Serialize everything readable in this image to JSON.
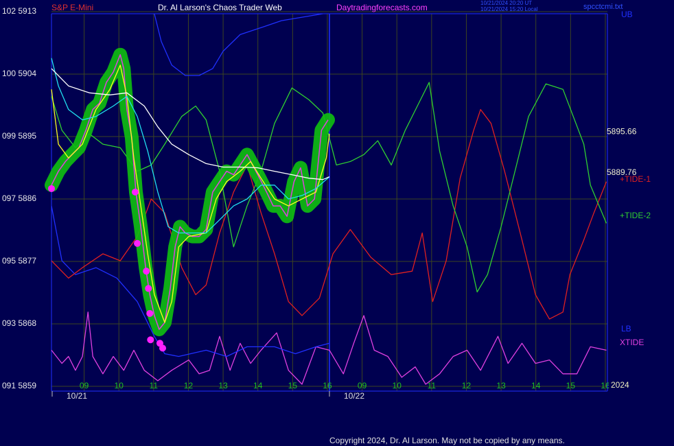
{
  "chart_data": {
    "type": "line",
    "header": {
      "symbol": "S&P E-Mini",
      "title": "Dr. Al Larson's Chaos Trader Web",
      "site": "Daytradingforecasts.com",
      "time_ut": "10/21/2024 20:20 UT",
      "time_local": "10/21/2024 15:20 Local",
      "file": "spcctcmi.txt"
    },
    "copyright": "Copyright 2024, Dr. Al Larson. May not be copied by any means.",
    "year": "2024",
    "dates": [
      "10/21",
      "10/22"
    ],
    "xlim": [
      0.06,
      16.06
    ],
    "ylim": [
      5859,
      5913
    ],
    "grid": true,
    "xticks": [
      {
        "value": 1,
        "label": "09"
      },
      {
        "value": 2,
        "label": "10"
      },
      {
        "value": 3,
        "label": "11"
      },
      {
        "value": 4,
        "label": "12"
      },
      {
        "value": 5,
        "label": "13"
      },
      {
        "value": 6,
        "label": "14"
      },
      {
        "value": 7,
        "label": "15"
      },
      {
        "value": 8,
        "label": "16"
      },
      {
        "value": 9,
        "label": "09"
      },
      10,
      11,
      12,
      13,
      14,
      15,
      16
    ],
    "yticks": [
      {
        "value": 5913,
        "label": "102 5913"
      },
      {
        "value": 5904,
        "label": "100 5904"
      },
      {
        "value": 5895,
        "label": "099 5895"
      },
      {
        "value": 5886,
        "label": "097 5886"
      },
      {
        "value": 5877,
        "label": "095 5877"
      },
      {
        "value": 5868,
        "label": "093 5868"
      },
      {
        "value": 5859,
        "label": "091 5859"
      }
    ],
    "price_labels": [
      5895.66,
      5889.76
    ],
    "series": [
      {
        "name": "XTIDE",
        "color": "#e040e0",
        "x": [
          0.06,
          0.36,
          0.55,
          0.75,
          0.95,
          1.11,
          1.25,
          1.54,
          1.84,
          2.14,
          2.43,
          2.73,
          3.12,
          3.52,
          4.01,
          4.31,
          4.61,
          4.9,
          5.2,
          5.49,
          5.79,
          6.09,
          6.54,
          6.88,
          7.27,
          7.67,
          8.06,
          8.46,
          8.76,
          9.05,
          9.35,
          9.74,
          10.14,
          10.53,
          10.83,
          11.23,
          11.62,
          12.02,
          12.41,
          12.91,
          13.2,
          13.6,
          13.99,
          14.39,
          14.78,
          15.18,
          15.57,
          16.03
        ],
        "values": [
          5864.2,
          5862.3,
          5863.3,
          5861.3,
          5863.3,
          5869.7,
          5863.3,
          5860.8,
          5863.3,
          5861.3,
          5864.2,
          5861.3,
          5859.8,
          5861.3,
          5862.8,
          5860.8,
          5861.3,
          5866.2,
          5861.3,
          5865.2,
          5862.3,
          5864.2,
          5866.7,
          5861.3,
          5859.3,
          5864.7,
          5864.2,
          5860.8,
          5865.2,
          5869.2,
          5864.2,
          5863.3,
          5860.3,
          5861.8,
          5859.3,
          5860.8,
          5863.3,
          5864.2,
          5861.3,
          5866.2,
          5862.3,
          5865.2,
          5862.3,
          5862.8,
          5860.8,
          5860.8,
          5864.7,
          5864.2
        ]
      },
      {
        "name": "UB",
        "color": "#2030ff",
        "x": [
          3.02,
          3.22,
          3.52,
          3.91,
          4.31,
          4.7,
          5.0,
          5.49,
          6.09,
          6.68,
          7.27,
          7.87
        ],
        "values": [
          5912.7,
          5908.7,
          5905.3,
          5903.8,
          5903.8,
          5904.8,
          5907.3,
          5909.7,
          5910.7,
          5911.7,
          5912.2,
          5912.7
        ]
      },
      {
        "name": "LB",
        "color": "#2030ff",
        "x": [
          0.06,
          0.36,
          0.75,
          1.34,
          1.94,
          2.53,
          3.02,
          3.32,
          3.72,
          4.51,
          5.1,
          5.69,
          6.48,
          7.08,
          7.67,
          8.06
        ],
        "values": [
          5885.0,
          5877.1,
          5875.1,
          5876.1,
          5874.6,
          5871.2,
          5866.2,
          5863.7,
          5863.3,
          5864.2,
          5863.3,
          5864.7,
          5864.7,
          5863.7,
          5864.7,
          5865.2
        ]
      },
      {
        "name": "+TIDE-1",
        "color": "#e02020",
        "x": [
          0.06,
          0.55,
          0.95,
          1.54,
          2.04,
          2.53,
          2.93,
          3.32,
          3.81,
          4.21,
          4.51,
          4.9,
          5.3,
          5.69,
          6.09,
          6.48,
          6.88,
          7.27,
          7.77,
          8.16,
          8.66,
          9.25,
          9.84,
          10.44,
          10.73,
          11.03,
          11.42,
          11.82,
          12.21,
          12.41,
          12.71,
          13.1,
          13.6,
          13.99,
          14.39,
          14.78,
          14.98,
          15.38,
          15.67,
          16.03
        ],
        "values": [
          5877.1,
          5874.6,
          5876.1,
          5878.1,
          5877.1,
          5880.6,
          5886.0,
          5884.0,
          5876.1,
          5872.2,
          5873.6,
          5881.1,
          5887.0,
          5890.9,
          5884.0,
          5878.1,
          5871.2,
          5869.2,
          5871.7,
          5878.1,
          5881.6,
          5877.6,
          5875.1,
          5875.6,
          5881.1,
          5871.2,
          5877.1,
          5889.0,
          5895.9,
          5898.9,
          5896.9,
          5890.0,
          5880.1,
          5872.2,
          5868.7,
          5869.7,
          5875.1,
          5880.1,
          5884.0,
          5888.5
        ]
      },
      {
        "name": "+TIDE-2",
        "color": "#30d030",
        "x": [
          0.06,
          0.36,
          0.75,
          1.15,
          1.54,
          2.04,
          2.53,
          2.93,
          3.32,
          3.81,
          4.21,
          4.51,
          4.9,
          5.3,
          5.69,
          6.09,
          6.48,
          6.98,
          7.47,
          7.87,
          8.26,
          8.66,
          9.05,
          9.45,
          9.84,
          10.24,
          10.63,
          10.93,
          11.23,
          11.62,
          12.02,
          12.31,
          12.61,
          13.0,
          13.4,
          13.79,
          14.29,
          14.78,
          15.38,
          15.57,
          16.03
        ],
        "values": [
          5900.8,
          5895.9,
          5893.4,
          5895.4,
          5893.9,
          5893.4,
          5890.0,
          5890.9,
          5893.9,
          5897.9,
          5899.4,
          5897.4,
          5890.0,
          5879.1,
          5885.0,
          5890.0,
          5896.9,
          5902.0,
          5900.3,
          5898.4,
          5890.9,
          5891.4,
          5892.4,
          5894.4,
          5890.9,
          5895.9,
          5899.8,
          5902.8,
          5892.9,
          5885.0,
          5879.1,
          5872.6,
          5875.1,
          5882.0,
          5890.0,
          5897.9,
          5902.6,
          5901.8,
          5893.9,
          5888.0,
          5882.5
        ]
      },
      {
        "color": "#e040e0",
        "glow": "#10c010",
        "x": [
          0.06,
          0.26,
          0.46,
          0.65,
          0.85,
          1.05,
          1.25,
          1.44,
          1.64,
          1.84,
          2.04,
          2.14,
          2.23,
          2.37,
          2.49,
          2.63,
          2.77,
          2.89,
          3.02,
          3.16,
          3.32,
          3.48,
          3.62,
          3.76,
          3.91,
          4.11,
          4.31,
          4.51,
          4.7,
          4.9,
          5.1,
          5.3,
          5.49,
          5.69,
          5.85,
          6.05,
          6.25,
          6.44,
          6.64,
          6.84,
          7.04,
          7.23,
          7.43,
          7.63,
          7.83,
          8.02
        ],
        "values": [
          5888.0,
          5890.0,
          5891.4,
          5892.4,
          5893.4,
          5895.9,
          5898.9,
          5899.8,
          5902.8,
          5904.3,
          5906.8,
          5904.8,
          5898.9,
          5894.9,
          5887.0,
          5882.0,
          5876.1,
          5872.2,
          5869.2,
          5867.2,
          5868.2,
          5873.1,
          5879.1,
          5882.0,
          5881.1,
          5880.6,
          5880.6,
          5881.6,
          5887.0,
          5888.5,
          5890.0,
          5889.5,
          5890.9,
          5892.4,
          5890.9,
          5889.0,
          5887.0,
          5885.0,
          5885.0,
          5883.5,
          5888.5,
          5890.5,
          5885.0,
          5886.0,
          5895.9,
          5897.4
        ]
      },
      {
        "color": "#ffff20",
        "x": [
          0.06,
          0.26,
          0.55,
          0.95,
          1.34,
          1.74,
          2.04,
          2.23,
          2.43,
          2.63,
          2.83,
          3.02,
          3.32,
          3.52,
          3.72,
          4.01,
          4.51,
          4.8,
          5.1,
          5.49,
          5.79,
          6.09,
          6.48,
          6.88,
          7.27,
          7.67,
          7.97,
          8.06
        ],
        "values": [
          5901.8,
          5893.9,
          5891.9,
          5893.9,
          5898.9,
          5901.8,
          5905.3,
          5900.8,
          5891.9,
          5885.0,
          5878.1,
          5872.2,
          5868.2,
          5871.2,
          5879.1,
          5880.6,
          5881.1,
          5886.0,
          5888.5,
          5890.0,
          5891.4,
          5889.0,
          5886.0,
          5885.0,
          5886.0,
          5887.0,
          5891.9,
          5895.4
        ]
      },
      {
        "color": "#20e0f0",
        "x": [
          0.06,
          0.26,
          0.55,
          0.95,
          1.34,
          1.84,
          2.23,
          2.53,
          2.83,
          3.12,
          3.42,
          3.72,
          4.11,
          4.51,
          4.9,
          5.3,
          5.69,
          6.09,
          6.48,
          6.88,
          7.27,
          7.67,
          8.06
        ],
        "values": [
          5906.3,
          5902.3,
          5898.9,
          5897.4,
          5897.9,
          5899.4,
          5900.8,
          5897.9,
          5892.9,
          5887.0,
          5882.0,
          5881.1,
          5881.1,
          5881.1,
          5883.0,
          5885.0,
          5886.0,
          5888.0,
          5888.0,
          5886.0,
          5886.5,
          5887.5,
          5889.2
        ]
      },
      {
        "color": "#ffffff",
        "x": [
          0.06,
          0.55,
          1.15,
          1.74,
          2.23,
          2.73,
          3.12,
          3.52,
          4.01,
          4.51,
          5.0,
          5.49,
          5.99,
          6.48,
          6.98,
          7.47,
          7.87,
          8.06
        ],
        "values": [
          5904.8,
          5902.3,
          5901.3,
          5901.0,
          5901.3,
          5899.4,
          5896.4,
          5893.9,
          5892.4,
          5891.1,
          5890.6,
          5890.6,
          5890.5,
          5890.0,
          5889.5,
          5889.0,
          5888.8,
          5889.2
        ]
      }
    ],
    "points": {
      "color": "#ff20ff",
      "x": [
        0.06,
        2.47,
        2.53,
        2.79,
        2.85,
        2.89,
        2.91,
        3.18,
        3.26
      ],
      "values": [
        5887.5,
        5887.0,
        5879.6,
        5875.6,
        5873.1,
        5869.5,
        5865.7,
        5865.2,
        5864.5
      ]
    }
  }
}
